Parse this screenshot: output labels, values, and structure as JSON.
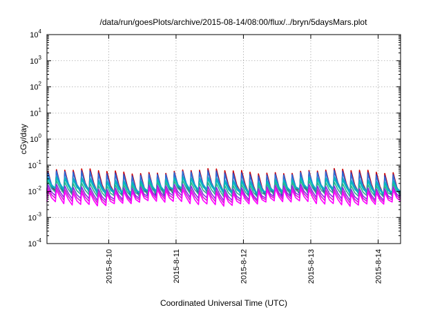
{
  "chart_data": {
    "type": "line",
    "title": "/data/run/goesPlots/archive/2015-08-14/08:00/flux/../bryn/5daysMars.plot",
    "xlabel": "Coordinated Universal Time (UTC)",
    "ylabel": "cGy/day",
    "yscale": "log",
    "ylim": [
      0.0001,
      10000
    ],
    "xlim": [
      "2015-08-09 02:00",
      "2015-08-14 08:00"
    ],
    "grid": true,
    "legend": "none",
    "x_ticks": [
      "2015-8-10",
      "2015-8-11",
      "2015-8-12",
      "2015-8-13",
      "2015-8-14"
    ],
    "y_ticks": [
      {
        "base": "10",
        "exp": "-4"
      },
      {
        "base": "10",
        "exp": "-3"
      },
      {
        "base": "10",
        "exp": "-2"
      },
      {
        "base": "10",
        "exp": "-1"
      },
      {
        "base": "10",
        "exp": "0"
      },
      {
        "base": "10",
        "exp": "1"
      },
      {
        "base": "10",
        "exp": "2"
      },
      {
        "base": "10",
        "exp": "3"
      },
      {
        "base": "10",
        "exp": "4"
      }
    ],
    "oscillation_period_hours": 3,
    "series": [
      {
        "color": "#cc0000",
        "peak": 0.058,
        "trough": 0.0085
      },
      {
        "color": "#3a3ab8",
        "peak": 0.05,
        "trough": 0.0075
      },
      {
        "color": "#2e6fd9",
        "peak": 0.045,
        "trough": 0.0095
      },
      {
        "color": "#19a0c8",
        "peak": 0.03,
        "trough": 0.0105
      },
      {
        "color": "#00bdbd",
        "peak": 0.026,
        "trough": 0.0095
      },
      {
        "color": "#2bb38a",
        "peak": 0.02,
        "trough": 0.0075
      },
      {
        "color": "#8a2be2",
        "peak": 0.015,
        "trough": 0.0055
      },
      {
        "color": "#cc22cc",
        "peak": 0.012,
        "trough": 0.0045
      },
      {
        "color": "#ff00ff",
        "peak": 0.01,
        "trough": 0.0035
      }
    ]
  }
}
